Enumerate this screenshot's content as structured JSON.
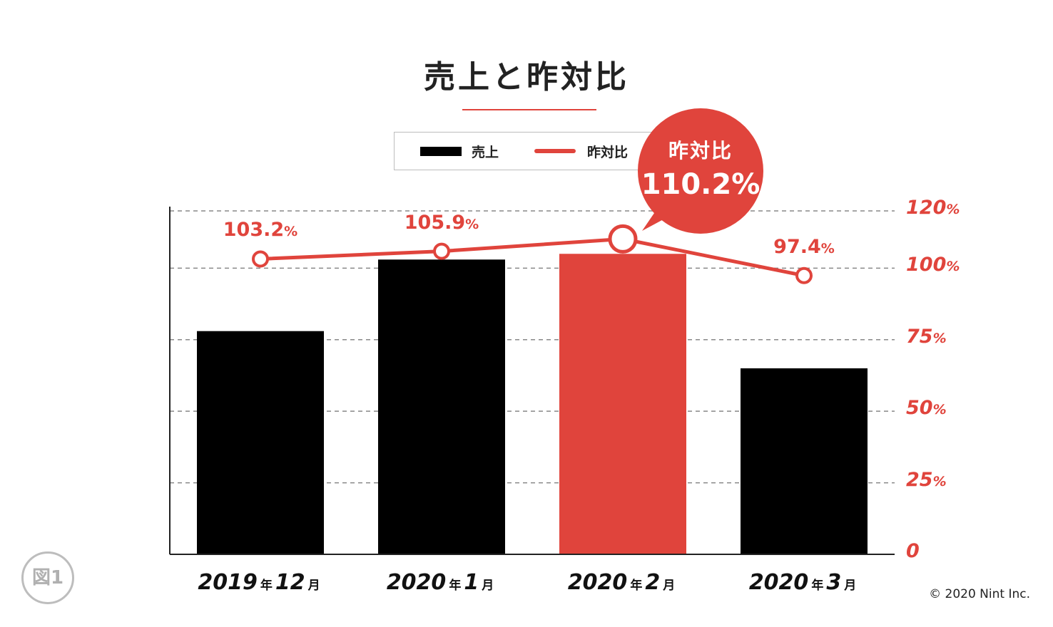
{
  "title": "売上と昨対比",
  "badge": "図1",
  "copyright": "© 2020 Nint Inc.",
  "legend": {
    "sales_label": "売上",
    "ratio_label": "昨対比"
  },
  "callout": {
    "label": "昨対比",
    "value": "110.2%"
  },
  "colors": {
    "accent": "#e0443c",
    "bar": "#000000",
    "highlight_bar": "#e0443c",
    "grid": "#888888"
  },
  "chart_data": {
    "type": "bar",
    "title": "売上と昨対比",
    "categories": [
      {
        "year": "2019",
        "y_unit": "年",
        "month": "12",
        "m_unit": "月"
      },
      {
        "year": "2020",
        "y_unit": "年",
        "month": "1",
        "m_unit": "月"
      },
      {
        "year": "2020",
        "y_unit": "年",
        "month": "2",
        "m_unit": "月"
      },
      {
        "year": "2020",
        "y_unit": "年",
        "month": "3",
        "m_unit": "月"
      }
    ],
    "series": [
      {
        "name": "売上",
        "type": "bar",
        "axis": "left",
        "values": [
          78,
          103,
          105,
          65
        ],
        "unit": "relative (no axis labels shown)",
        "highlight_index": 2
      },
      {
        "name": "昨対比",
        "type": "line",
        "axis": "right",
        "values": [
          103.2,
          105.9,
          110.2,
          97.4
        ],
        "labels": [
          {
            "num": "103.2",
            "pct": "%"
          },
          {
            "num": "105.9",
            "pct": "%"
          },
          {
            "num": "",
            "pct": ""
          },
          {
            "num": "97.4",
            "pct": "%"
          }
        ],
        "highlight_index": 2
      }
    ],
    "right_axis": {
      "range": [
        0,
        120
      ],
      "ticks": [
        {
          "num": "120",
          "pct": "%",
          "value": 120
        },
        {
          "num": "100",
          "pct": "%",
          "value": 100
        },
        {
          "num": "75",
          "pct": "%",
          "value": 75
        },
        {
          "num": "50",
          "pct": "%",
          "value": 50
        },
        {
          "num": "25",
          "pct": "%",
          "value": 25
        },
        {
          "num": "0",
          "pct": "",
          "value": 0
        }
      ]
    },
    "grid": "dashed horizontal"
  }
}
